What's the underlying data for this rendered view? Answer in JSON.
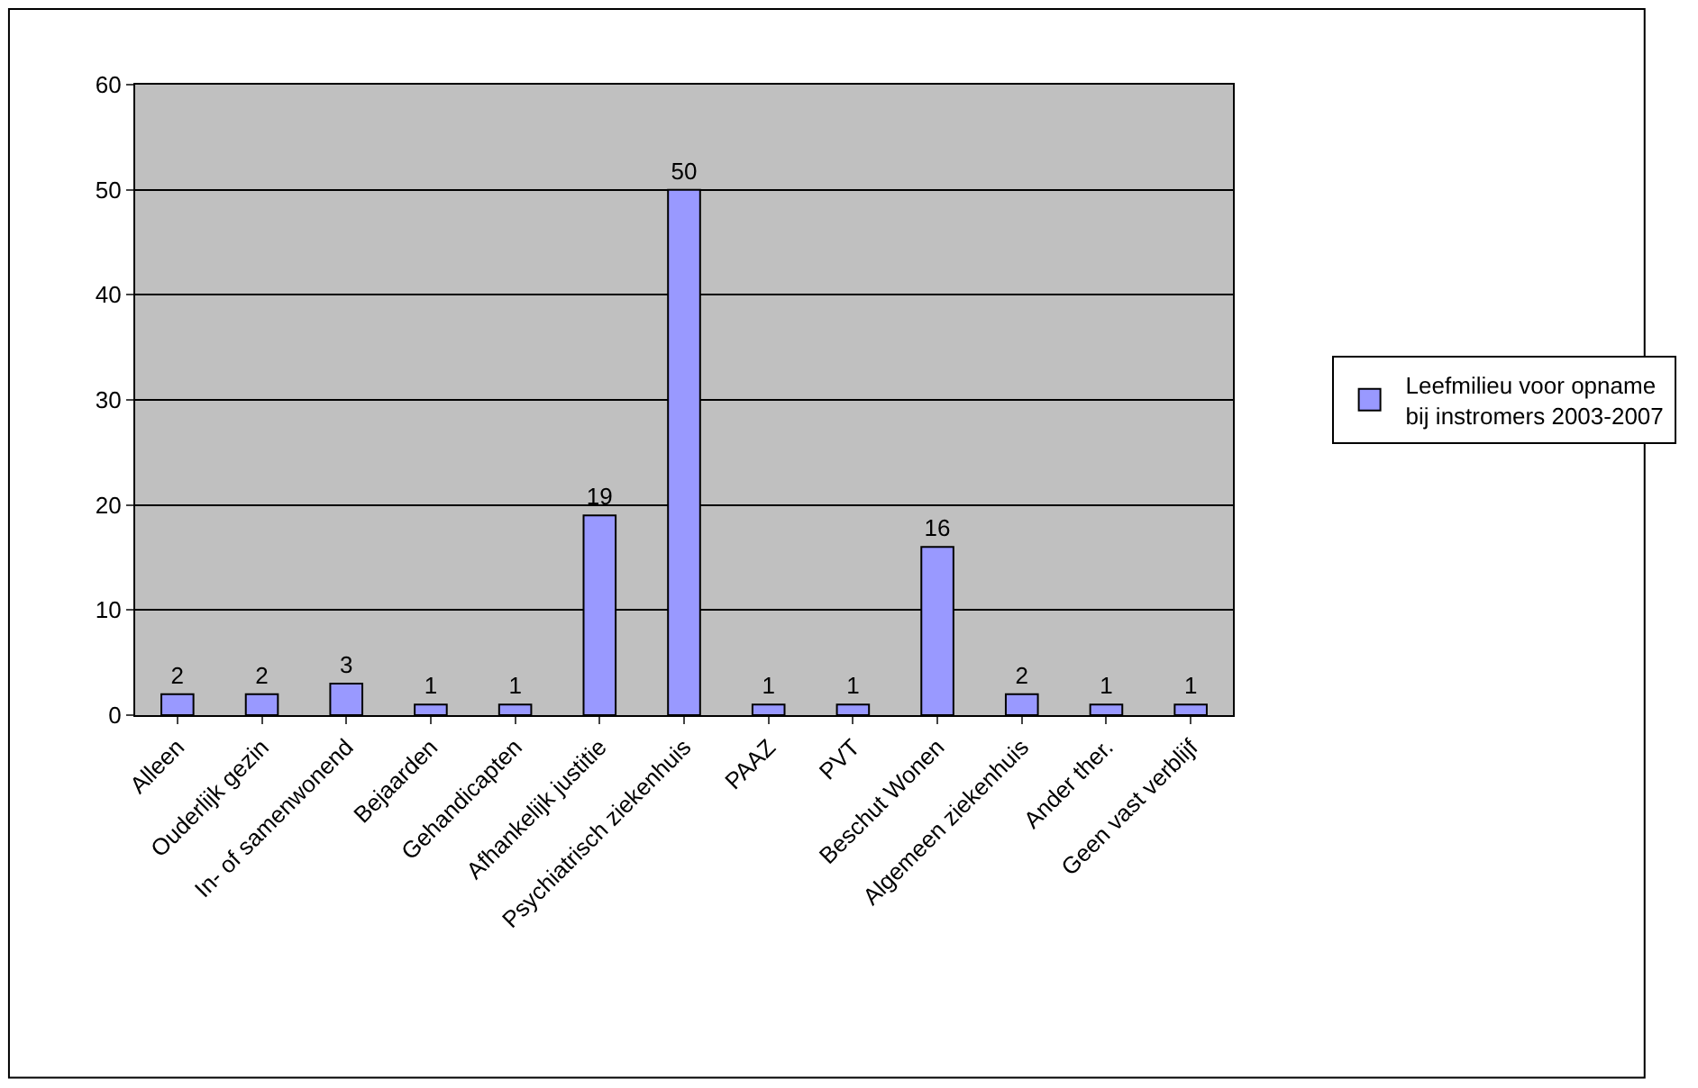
{
  "chart_data": {
    "type": "bar",
    "categories": [
      "Alleen",
      "Ouderlijk gezin",
      "In- of samenwonend",
      "Bejaarden",
      "Gehandicapten",
      "Afhankelijk justitie",
      "Psychiatrisch ziekenhuis",
      "PAAZ",
      "PVT",
      "Beschut Wonen",
      "Algemeen ziekenhuis",
      "Ander ther.",
      "Geen vast verblijf"
    ],
    "series": [
      {
        "name": "Leefmilieu voor opname bij instromers 2003-2007",
        "color": "#9999ff",
        "values": [
          2,
          2,
          3,
          1,
          1,
          19,
          50,
          1,
          1,
          16,
          2,
          1,
          1
        ]
      }
    ],
    "ylim": [
      0,
      60
    ],
    "yticks": [
      0,
      10,
      20,
      30,
      40,
      50,
      60
    ],
    "grid": "y",
    "legend": "right",
    "data_labels": true
  }
}
